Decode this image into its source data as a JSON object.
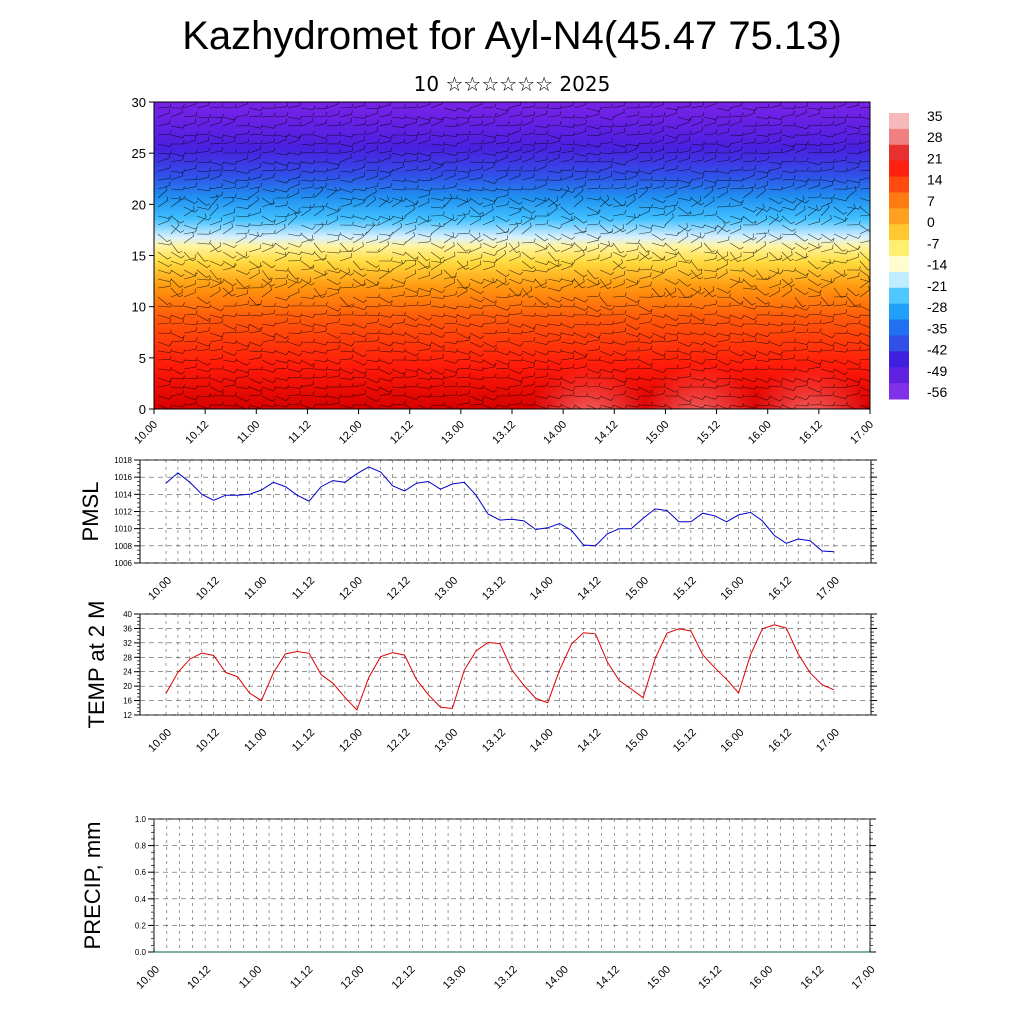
{
  "title": "Kazhydromet for Ayl-N4(45.47 75.13)",
  "subtitle": "10 ☆☆☆☆☆☆ 2025",
  "time_labels": [
    "10.00",
    "10.12",
    "11.00",
    "11.12",
    "12.00",
    "12.12",
    "13.00",
    "13.12",
    "14.00",
    "14.12",
    "15.00",
    "15.12",
    "16.00",
    "16.12",
    "17.00"
  ],
  "colorbar": {
    "labels": [
      "35",
      "28",
      "21",
      "14",
      "7",
      "0",
      "-7",
      "-14",
      "-21",
      "-28",
      "-35",
      "-42",
      "-49",
      "-56"
    ],
    "colors": [
      "#f4a0a0",
      "#e82020",
      "#ff3a10",
      "#ff7a10",
      "#ffb020",
      "#ffe060",
      "#d8f0ff",
      "#40c8ff",
      "#2090f0",
      "#4050f0",
      "#5020e0",
      "#7020e8"
    ]
  },
  "chart_data": [
    {
      "type": "heatmap",
      "title": "",
      "xlabel": "",
      "ylabel": "",
      "ylim": [
        0,
        30
      ],
      "yticks": [
        0,
        5,
        10,
        15,
        20,
        25,
        30
      ],
      "variable": "temperature with wind barbs"
    },
    {
      "type": "line",
      "ylabel": "PMSL",
      "ylim": [
        1006,
        1018
      ],
      "yticks": [
        1006,
        1008,
        1010,
        1012,
        1014,
        1016,
        1018
      ],
      "color": "#0000cc",
      "series": [
        {
          "values": [
            1015.3,
            1016.5,
            1015.4,
            1014.0,
            1013.3,
            1013.9,
            1013.9,
            1014.0,
            1014.5,
            1015.4,
            1014.9,
            1013.9,
            1013.2,
            1014.9,
            1015.6,
            1015.4,
            1016.4,
            1017.2,
            1016.6,
            1015.0,
            1014.4,
            1015.3,
            1015.5,
            1014.6,
            1015.2,
            1015.4,
            1013.9,
            1011.7,
            1011.0,
            1011.1,
            1010.9,
            1009.9,
            1010.1,
            1010.6,
            1009.8,
            1008.1,
            1008.0,
            1009.4,
            1010.0,
            1010.0,
            1011.2,
            1012.3,
            1012.1,
            1010.8,
            1010.8,
            1011.8,
            1011.5,
            1010.8,
            1011.6,
            1011.9,
            1010.9,
            1009.2,
            1008.3,
            1008.8,
            1008.6,
            1007.4,
            1007.3
          ]
        }
      ]
    },
    {
      "type": "line",
      "ylabel": "TEMP at 2 M",
      "ylim": [
        12,
        40
      ],
      "yticks": [
        12,
        16,
        20,
        24,
        28,
        32,
        36,
        40
      ],
      "color": "#dd0000",
      "series": [
        {
          "values": [
            18,
            23.8,
            27.5,
            29.2,
            28.5,
            23.8,
            22.6,
            18.1,
            16,
            23.7,
            28.9,
            29.6,
            29.1,
            23.2,
            20.8,
            16.9,
            13.4,
            22.4,
            28.2,
            29.3,
            28.6,
            21.8,
            17.6,
            14.2,
            13.8,
            24.4,
            29.8,
            32.1,
            31.8,
            24.5,
            20.2,
            16.6,
            15.4,
            24.5,
            31.7,
            34.8,
            34.5,
            26.7,
            21.5,
            19.2,
            16.8,
            27.6,
            34.7,
            35.9,
            35.3,
            28.7,
            25.1,
            21.9,
            18.1,
            28.7,
            35.9,
            37,
            36.1,
            28.9,
            23.7,
            20.4,
            19
          ]
        }
      ]
    },
    {
      "type": "line",
      "ylabel": "PRECIP, mm",
      "ylim": [
        0,
        1
      ],
      "yticks": [
        "0.0",
        "0.2",
        "0.4",
        "0.6",
        "0.8",
        "1.0"
      ],
      "color": "#006030",
      "series": [
        {
          "values": [
            0,
            0,
            0,
            0,
            0,
            0,
            0,
            0,
            0,
            0,
            0,
            0,
            0,
            0,
            0,
            0,
            0,
            0,
            0,
            0,
            0,
            0,
            0,
            0,
            0,
            0,
            0,
            0,
            0,
            0,
            0,
            0,
            0,
            0,
            0,
            0,
            0,
            0,
            0,
            0,
            0,
            0,
            0,
            0,
            0,
            0,
            0,
            0,
            0,
            0,
            0,
            0,
            0,
            0,
            0,
            0,
            0
          ]
        }
      ]
    }
  ]
}
